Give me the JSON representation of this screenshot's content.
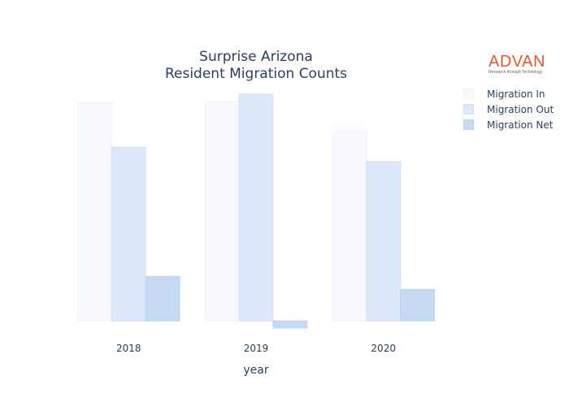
{
  "chart_data": {
    "type": "bar",
    "title_line1": "Surprise Arizona",
    "title_line2": "Resident Migration Counts",
    "xlabel": "year",
    "ylabel": "",
    "categories": [
      "2018",
      "2019",
      "2020"
    ],
    "series": [
      {
        "name": "Migration In",
        "values": [
          7600,
          7650,
          6650
        ],
        "color": "#f7f9fe",
        "stroke": "#eef2fb"
      },
      {
        "name": "Migration Out",
        "values": [
          6050,
          7900,
          5550
        ],
        "color": "#dde8fb",
        "stroke": "#d2e0f7"
      },
      {
        "name": "Migration Net",
        "values": [
          1550,
          -250,
          1100
        ],
        "color": "#c6daf3",
        "stroke": "#bcd2ef"
      }
    ],
    "ylim": [
      -250,
      7900
    ],
    "grid": false,
    "legend_position": "top-right"
  },
  "logo": {
    "main": "ADVAN",
    "tagline": "Research through Technology"
  }
}
